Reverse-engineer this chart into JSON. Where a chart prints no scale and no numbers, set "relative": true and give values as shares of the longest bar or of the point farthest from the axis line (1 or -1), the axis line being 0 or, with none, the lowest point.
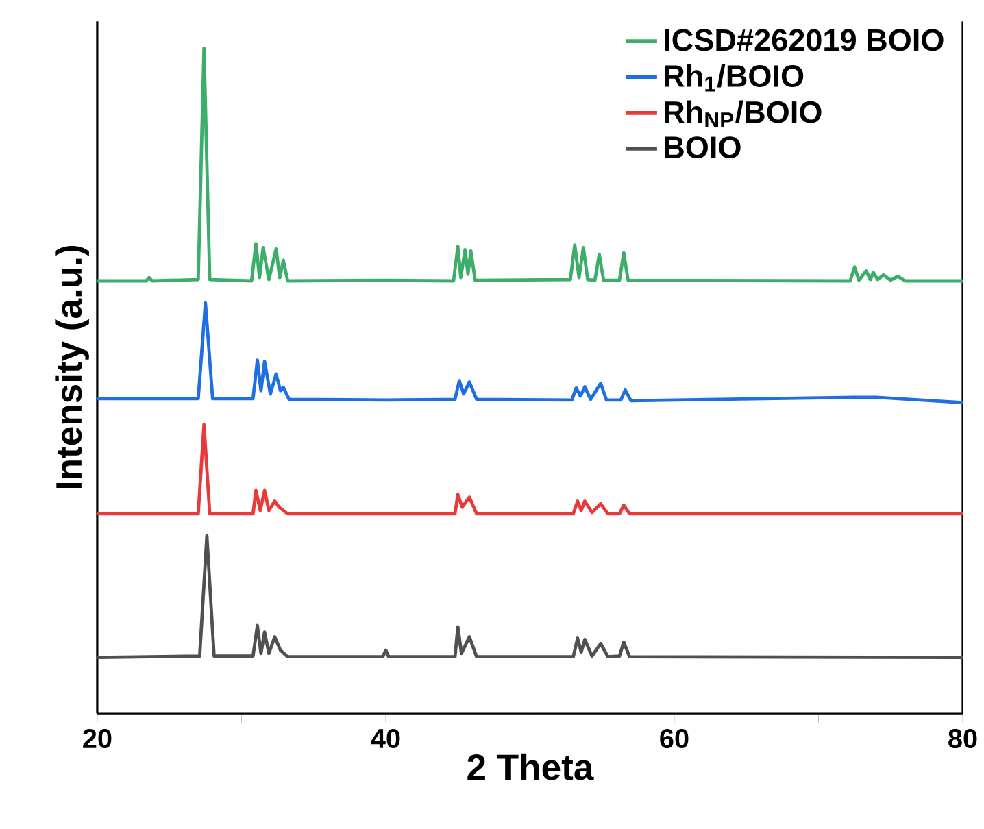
{
  "chart_data": {
    "type": "line",
    "relative": true,
    "xlabel": "2 Theta",
    "ylabel": "Intensity (a.u.)",
    "xlim": [
      20,
      80
    ],
    "xticks": [
      20,
      {
        "value": 30,
        "label": null
      },
      40,
      {
        "value": 50,
        "label": null
      },
      60,
      {
        "value": 70,
        "label": null
      },
      80
    ],
    "tick_labels": "x",
    "legend": "top right",
    "series": [
      {
        "name": "ICSD#262019 BOIO",
        "color": "#3dae6a",
        "x": [
          20,
          23.4,
          23.6,
          23.8,
          27.0,
          27.4,
          27.8,
          30.7,
          31.0,
          31.25,
          31.5,
          31.9,
          32.4,
          32.65,
          32.9,
          33.2,
          40,
          44.7,
          45.0,
          45.2,
          45.5,
          45.7,
          45.9,
          46.2,
          52.8,
          53.1,
          53.4,
          53.7,
          54.0,
          54.5,
          54.8,
          55.1,
          56.2,
          56.5,
          56.8,
          72.2,
          72.5,
          72.8,
          73.3,
          73.6,
          73.8,
          74.1,
          74.5,
          75.0,
          75.5,
          76,
          80
        ],
        "values": [
          0.65,
          0.65,
          0.655,
          0.65,
          0.652,
          1.0,
          0.652,
          0.65,
          0.706,
          0.655,
          0.7,
          0.652,
          0.698,
          0.655,
          0.681,
          0.65,
          0.651,
          0.65,
          0.702,
          0.655,
          0.697,
          0.66,
          0.695,
          0.651,
          0.652,
          0.704,
          0.655,
          0.7,
          0.652,
          0.651,
          0.69,
          0.651,
          0.651,
          0.692,
          0.651,
          0.65,
          0.671,
          0.651,
          0.665,
          0.652,
          0.663,
          0.652,
          0.659,
          0.651,
          0.657,
          0.65,
          0.65
        ]
      },
      {
        "name": "Rh$_{1}$/BOIO",
        "color": "#1f6fe0",
        "x": [
          20,
          27.0,
          27.5,
          28.0,
          30.8,
          31.1,
          31.35,
          31.6,
          32.0,
          32.4,
          32.7,
          32.9,
          33.3,
          40,
          44.8,
          45.1,
          45.4,
          45.8,
          46.3,
          52.9,
          53.2,
          53.5,
          53.8,
          54.2,
          54.9,
          55.3,
          56.3,
          56.6,
          57.0,
          72.5,
          74,
          80
        ],
        "values": [
          0.473,
          0.473,
          0.617,
          0.473,
          0.473,
          0.531,
          0.485,
          0.529,
          0.48,
          0.51,
          0.485,
          0.49,
          0.472,
          0.471,
          0.472,
          0.5,
          0.48,
          0.498,
          0.472,
          0.471,
          0.489,
          0.477,
          0.491,
          0.472,
          0.496,
          0.471,
          0.471,
          0.486,
          0.47,
          0.475,
          0.475,
          0.467
        ]
      },
      {
        "name": "Rh$_{NP}$/BOIO",
        "color": "#e8393b",
        "x": [
          20,
          27.0,
          27.4,
          27.8,
          30.8,
          31.0,
          31.3,
          31.6,
          31.9,
          32.3,
          32.6,
          33.2,
          44.8,
          45.0,
          45.3,
          45.8,
          46.3,
          53.0,
          53.3,
          53.55,
          53.8,
          54.3,
          54.9,
          55.4,
          56.2,
          56.5,
          56.9,
          80
        ],
        "values": [
          0.3,
          0.3,
          0.434,
          0.3,
          0.3,
          0.335,
          0.305,
          0.335,
          0.305,
          0.319,
          0.31,
          0.3,
          0.3,
          0.329,
          0.31,
          0.325,
          0.3,
          0.3,
          0.319,
          0.305,
          0.319,
          0.302,
          0.315,
          0.3,
          0.3,
          0.313,
          0.3,
          0.3
        ]
      },
      {
        "name": "BOIO",
        "color": "#505050",
        "x": [
          20,
          27.1,
          27.6,
          28.1,
          30.8,
          31.1,
          31.35,
          31.6,
          31.9,
          32.3,
          32.7,
          33.2,
          39.8,
          40.0,
          40.2,
          44.8,
          45.0,
          45.25,
          45.8,
          46.3,
          53.0,
          53.3,
          53.55,
          53.8,
          54.3,
          54.9,
          55.4,
          56.2,
          56.5,
          56.9,
          80
        ],
        "values": [
          0.084,
          0.086,
          0.267,
          0.086,
          0.086,
          0.132,
          0.09,
          0.122,
          0.09,
          0.115,
          0.095,
          0.085,
          0.085,
          0.095,
          0.085,
          0.085,
          0.13,
          0.09,
          0.115,
          0.085,
          0.085,
          0.113,
          0.092,
          0.111,
          0.086,
          0.105,
          0.085,
          0.086,
          0.107,
          0.085,
          0.084
        ]
      }
    ]
  }
}
